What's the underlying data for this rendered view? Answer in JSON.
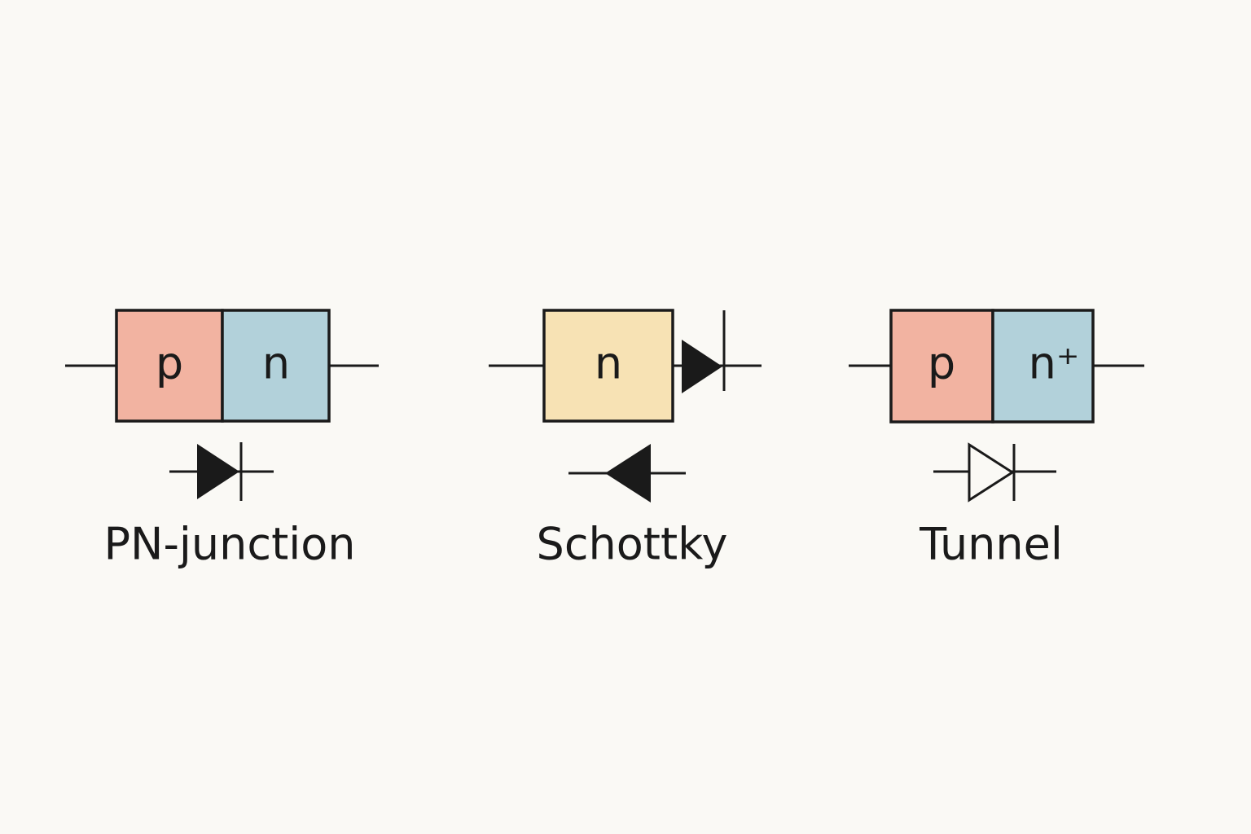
{
  "colors": {
    "background": "#faf9f5",
    "p_region": "#f2b3a1",
    "n_region": "#b2d1da",
    "n_schottky": "#f7e2b4",
    "ink": "#1a1a1a"
  },
  "diodes": [
    {
      "caption": "PN-junction",
      "regions": [
        "p",
        "n"
      ],
      "symbol_icon": "diode-filled-icon"
    },
    {
      "caption": "Schottky",
      "regions": [
        "n"
      ],
      "symbol_icon": "diode-filled-reverse-icon",
      "junction_icon": "diode-filled-icon"
    },
    {
      "caption": "Tunnel",
      "regions": [
        "p",
        "n⁺"
      ],
      "symbol_icon": "diode-outline-icon"
    }
  ]
}
